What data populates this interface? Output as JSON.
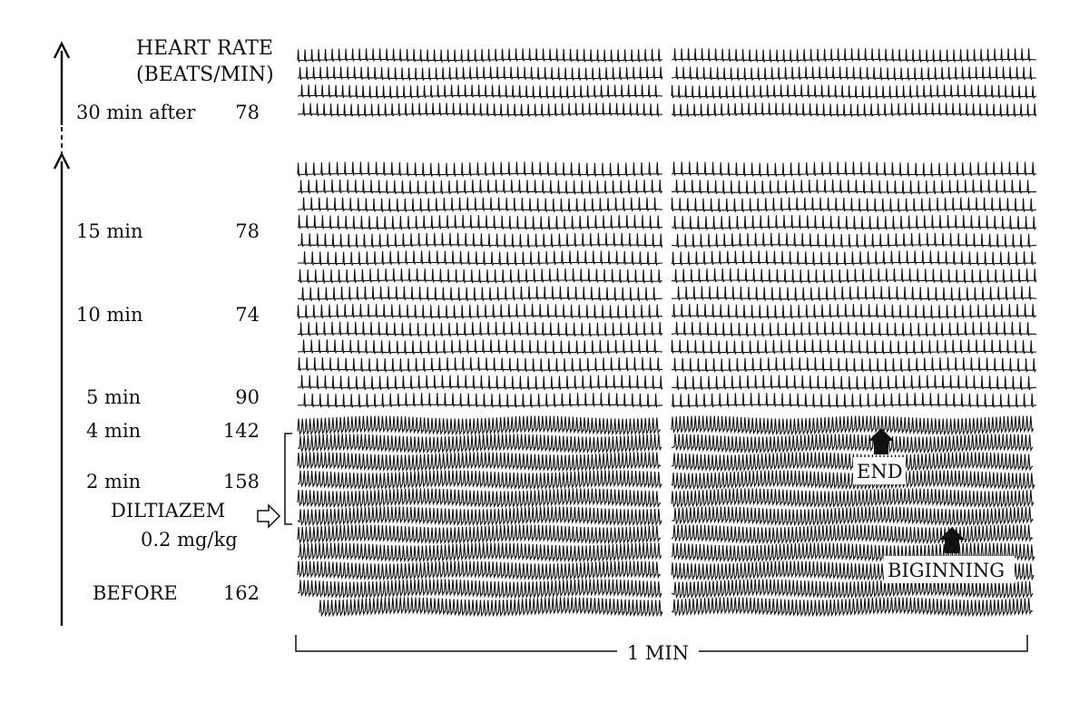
{
  "header": {
    "line1": "HEART RATE",
    "line2": "(BEATS/MIN)"
  },
  "timepoints": [
    {
      "time": "30 min after",
      "rate": "78"
    },
    {
      "time": "15 min",
      "rate": "78"
    },
    {
      "time": "10 min",
      "rate": "74"
    },
    {
      "time": "5 min",
      "rate": "90"
    },
    {
      "time": "4 min",
      "rate": "142"
    },
    {
      "time": "2 min",
      "rate": "158"
    },
    {
      "time": "BEFORE",
      "rate": "162"
    }
  ],
  "drug": {
    "name": "DILTIAZEM",
    "dose": "0.2 mg/kg"
  },
  "annotations": {
    "end": "END",
    "beginning": "BIGINNING"
  },
  "scale": {
    "label": "1 MIN"
  }
}
